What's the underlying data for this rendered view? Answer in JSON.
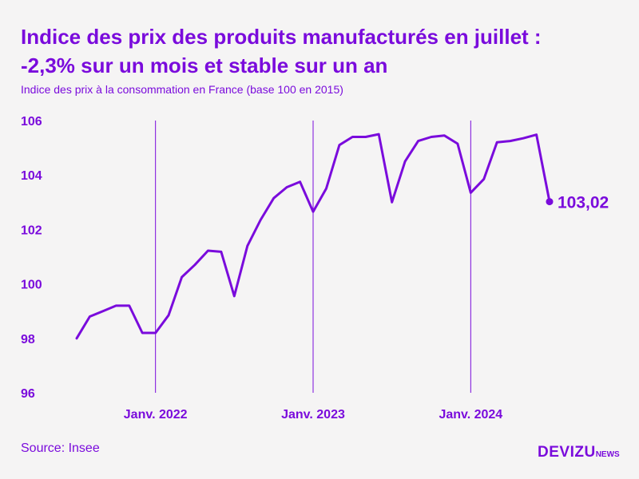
{
  "title_line1": "Indice des prix des produits manufacturés en juillet :",
  "title_line2": "-2,3% sur un mois et stable sur un an",
  "subtitle": "Indice des prix à la consommation en France (base 100 en 2015)",
  "source": "Source: Insee",
  "logo": {
    "main": "DEVIZU",
    "sub": "NEWS"
  },
  "colors": {
    "accent": "#7a0bdc",
    "line": "#7a0bdc",
    "background": "#f5f4f4"
  },
  "chart_data": {
    "type": "line",
    "title": "Indice des prix des produits manufacturés en juillet : -2,3% sur un mois et stable sur un an",
    "subtitle": "Indice des prix à la consommation en France (base 100 en 2015)",
    "xlabel": "",
    "ylabel": "",
    "ylim": [
      96,
      106
    ],
    "yticks": [
      {
        "value": 96,
        "label": "96"
      },
      {
        "value": 98,
        "label": "98"
      },
      {
        "value": 100,
        "label": "100"
      },
      {
        "value": 102,
        "label": "102"
      },
      {
        "value": 104,
        "label": "104"
      },
      {
        "value": 106,
        "label": "106"
      }
    ],
    "xticks": [
      {
        "date": "2022-01",
        "label": "Janv. 2022"
      },
      {
        "date": "2023-01",
        "label": "Janv. 2023"
      },
      {
        "date": "2024-01",
        "label": "Janv. 2024"
      }
    ],
    "grid": "vertical lines at January",
    "legend": "none",
    "x": [
      "2021-07",
      "2021-08",
      "2021-09",
      "2021-10",
      "2021-11",
      "2021-12",
      "2022-01",
      "2022-02",
      "2022-03",
      "2022-04",
      "2022-05",
      "2022-06",
      "2022-07",
      "2022-08",
      "2022-09",
      "2022-10",
      "2022-11",
      "2022-12",
      "2023-01",
      "2023-02",
      "2023-03",
      "2023-04",
      "2023-05",
      "2023-06",
      "2023-07",
      "2023-08",
      "2023-09",
      "2023-10",
      "2023-11",
      "2023-12",
      "2024-01",
      "2024-02",
      "2024-03",
      "2024-04",
      "2024-05",
      "2024-06",
      "2024-07"
    ],
    "series": [
      {
        "values": [
          98.0,
          98.8,
          99.0,
          99.2,
          99.2,
          98.2,
          98.2,
          98.85,
          100.25,
          100.7,
          101.22,
          101.18,
          99.55,
          101.4,
          102.35,
          103.15,
          103.55,
          103.75,
          102.65,
          103.5,
          105.1,
          105.4,
          105.4,
          105.5,
          103.0,
          104.5,
          105.25,
          105.4,
          105.45,
          105.15,
          103.35,
          103.85,
          105.2,
          105.25,
          105.35,
          105.48,
          103.02
        ]
      }
    ],
    "annotations": [
      {
        "date": "2024-07",
        "value": 103.02,
        "label": "103,02"
      }
    ]
  }
}
